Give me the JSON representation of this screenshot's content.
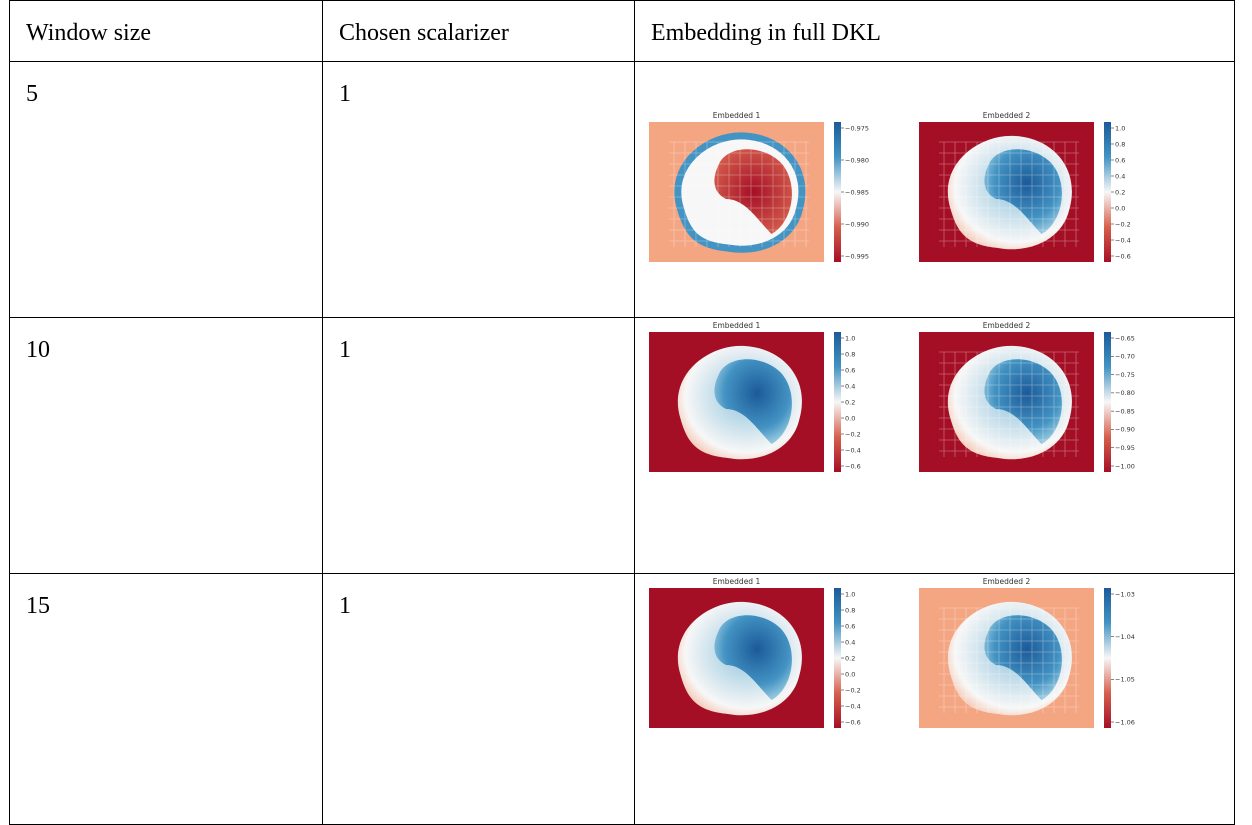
{
  "table": {
    "headers": [
      "Window size",
      "Chosen scalarizer",
      "Embedding in full DKL"
    ],
    "rows": [
      {
        "window_size": "5",
        "scalarizer": "1",
        "panels": [
          {
            "title": "Embedded 1",
            "colorbar_ticks": [
              "−0.975",
              "−0.980",
              "−0.985",
              "−0.990",
              "−0.995"
            ],
            "pattern": "ring"
          },
          {
            "title": "Embedded 2",
            "colorbar_ticks": [
              "1.0",
              "0.8",
              "0.6",
              "0.4",
              "0.2",
              "0.0",
              "−0.2",
              "−0.4",
              "−0.6"
            ],
            "pattern": "blob-blocky"
          }
        ]
      },
      {
        "window_size": "10",
        "scalarizer": "1",
        "panels": [
          {
            "title": "Embedded 1",
            "colorbar_ticks": [
              "1.0",
              "0.8",
              "0.6",
              "0.4",
              "0.2",
              "0.0",
              "−0.2",
              "−0.4",
              "−0.6"
            ],
            "pattern": "blob-smooth"
          },
          {
            "title": "Embedded 2",
            "colorbar_ticks": [
              "−0.65",
              "−0.70",
              "−0.75",
              "−0.80",
              "−0.85",
              "−0.90",
              "−0.95",
              "−1.00"
            ],
            "pattern": "blob-blocky"
          }
        ]
      },
      {
        "window_size": "15",
        "scalarizer": "1",
        "panels": [
          {
            "title": "Embedded 1",
            "colorbar_ticks": [
              "1.0",
              "0.8",
              "0.6",
              "0.4",
              "0.2",
              "0.0",
              "−0.2",
              "−0.4",
              "−0.6"
            ],
            "pattern": "blob-smooth"
          },
          {
            "title": "Embedded 2",
            "colorbar_ticks": [
              "−1.03",
              "−1.04",
              "−1.05",
              "−1.06"
            ],
            "pattern": "blob-blocky-light"
          }
        ]
      }
    ]
  },
  "colors": {
    "deep_red": "#a50f26",
    "red": "#d6604d",
    "light_red": "#f4a582",
    "white": "#f7f7f7",
    "light_blue": "#92c5de",
    "blue": "#4393c3",
    "deep_blue": "#1c5a99"
  }
}
